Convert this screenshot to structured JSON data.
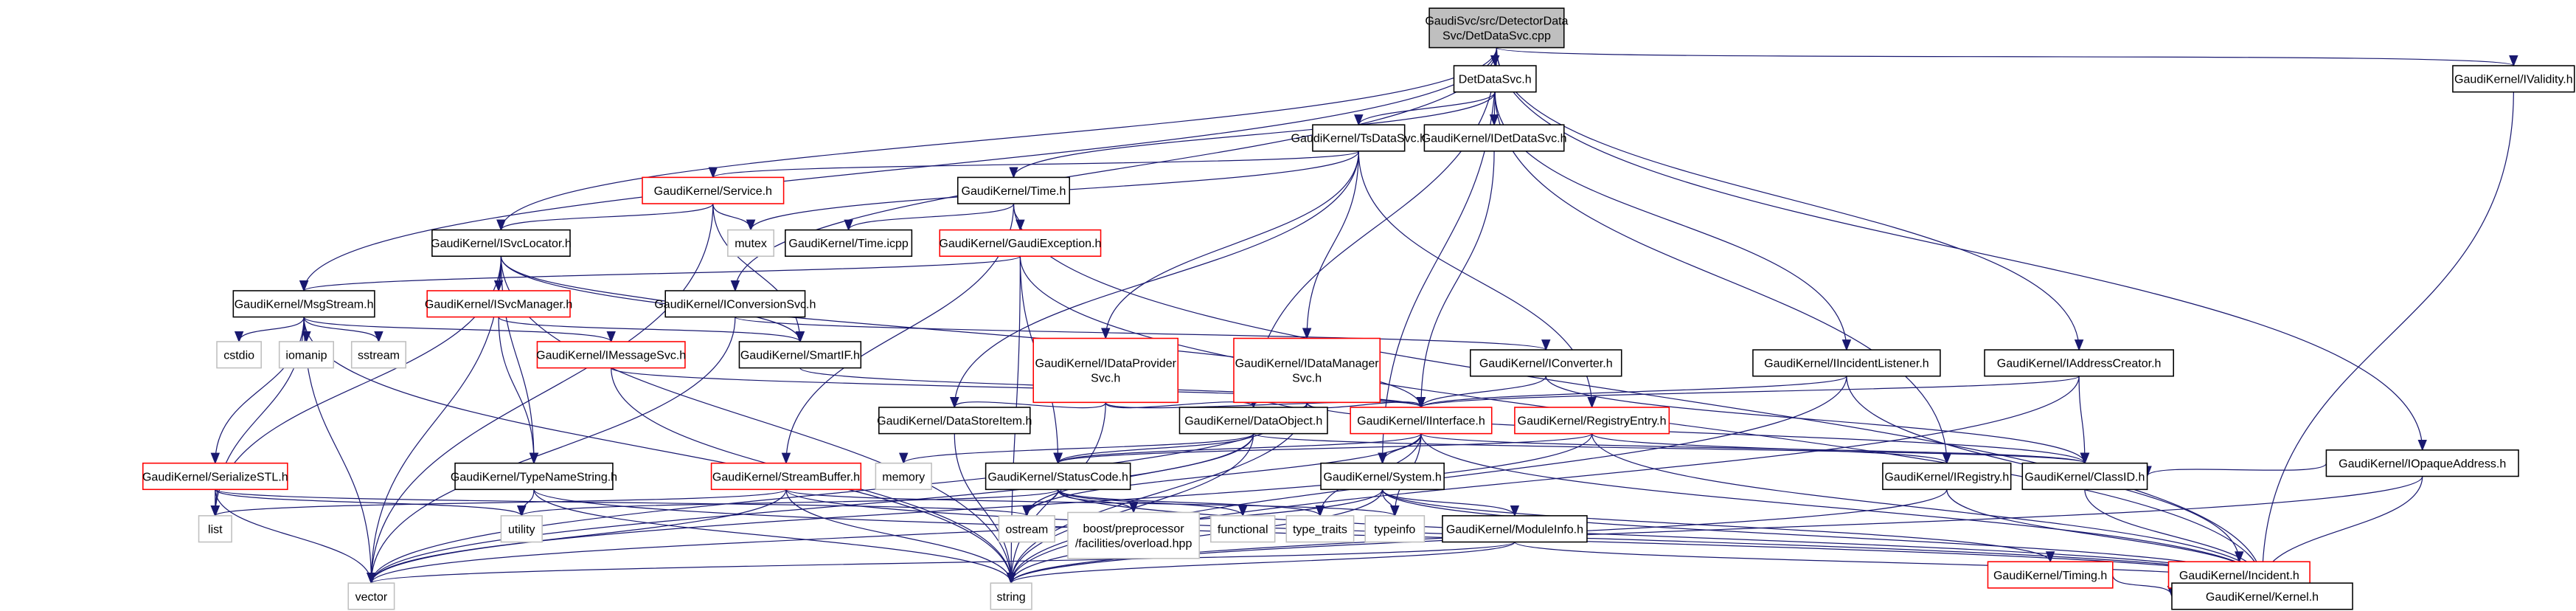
{
  "diagram": {
    "colors": {
      "edge": "#191970",
      "root_fill": "#bfbfbf",
      "normal_border": "#000000",
      "truncated_border": "#ff0000",
      "system_border": "#bfbfbf"
    },
    "nodes": [
      {
        "name": "GaudiSvc/src/DetectorDataSvc/DetDataSvc.cpp",
        "lines": [
          "GaudiSvc/src/DetectorData",
          "Svc/DetDataSvc.cpp"
        ],
        "kind": "root"
      },
      {
        "name": "DetDataSvc.h",
        "lines": [
          "DetDataSvc.h"
        ],
        "kind": "normal"
      },
      {
        "name": "GaudiKernel/TsDataSvc.h",
        "lines": [
          "GaudiKernel/TsDataSvc.h"
        ],
        "kind": "normal"
      },
      {
        "name": "GaudiKernel/IDetDataSvc.h",
        "lines": [
          "GaudiKernel/IDetDataSvc.h"
        ],
        "kind": "normal"
      },
      {
        "name": "GaudiKernel/IValidity.h",
        "lines": [
          "GaudiKernel/IValidity.h"
        ],
        "kind": "normal"
      },
      {
        "name": "GaudiKernel/Service.h",
        "lines": [
          "GaudiKernel/Service.h"
        ],
        "kind": "truncated"
      },
      {
        "name": "GaudiKernel/Time.h",
        "lines": [
          "GaudiKernel/Time.h"
        ],
        "kind": "normal"
      },
      {
        "name": "mutex",
        "lines": [
          "mutex"
        ],
        "kind": "system"
      },
      {
        "name": "GaudiKernel/Time.icpp",
        "lines": [
          "GaudiKernel/Time.icpp"
        ],
        "kind": "normal"
      },
      {
        "name": "GaudiKernel/GaudiException.h",
        "lines": [
          "GaudiKernel/GaudiException.h"
        ],
        "kind": "truncated"
      },
      {
        "name": "GaudiKernel/ISvcLocator.h",
        "lines": [
          "GaudiKernel/ISvcLocator.h"
        ],
        "kind": "normal"
      },
      {
        "name": "GaudiKernel/MsgStream.h",
        "lines": [
          "GaudiKernel/MsgStream.h"
        ],
        "kind": "normal"
      },
      {
        "name": "GaudiKernel/ISvcManager.h",
        "lines": [
          "GaudiKernel/ISvcManager.h"
        ],
        "kind": "truncated"
      },
      {
        "name": "GaudiKernel/IConversionSvc.h",
        "lines": [
          "GaudiKernel/IConversionSvc.h"
        ],
        "kind": "normal"
      },
      {
        "name": "cstdio",
        "lines": [
          "cstdio"
        ],
        "kind": "system"
      },
      {
        "name": "iomanip",
        "lines": [
          "iomanip"
        ],
        "kind": "system"
      },
      {
        "name": "sstream",
        "lines": [
          "sstream"
        ],
        "kind": "system"
      },
      {
        "name": "GaudiKernel/IMessageSvc.h",
        "lines": [
          "GaudiKernel/IMessageSvc.h"
        ],
        "kind": "truncated"
      },
      {
        "name": "GaudiKernel/SmartIF.h",
        "lines": [
          "GaudiKernel/SmartIF.h"
        ],
        "kind": "normal"
      },
      {
        "name": "GaudiKernel/IDataProviderSvc.h",
        "lines": [
          "GaudiKernel/IDataProvider",
          "Svc.h"
        ],
        "kind": "truncated"
      },
      {
        "name": "GaudiKernel/IDataManagerSvc.h",
        "lines": [
          "GaudiKernel/IDataManager",
          "Svc.h"
        ],
        "kind": "truncated"
      },
      {
        "name": "GaudiKernel/IConverter.h",
        "lines": [
          "GaudiKernel/IConverter.h"
        ],
        "kind": "normal"
      },
      {
        "name": "GaudiKernel/IIncidentListener.h",
        "lines": [
          "GaudiKernel/IIncidentListener.h"
        ],
        "kind": "normal"
      },
      {
        "name": "GaudiKernel/IAddressCreator.h",
        "lines": [
          "GaudiKernel/IAddressCreator.h"
        ],
        "kind": "normal"
      },
      {
        "name": "GaudiKernel/IOpaqueAddress.h",
        "lines": [
          "GaudiKernel/IOpaqueAddress.h"
        ],
        "kind": "normal"
      },
      {
        "name": "GaudiKernel/DataStoreItem.h",
        "lines": [
          "GaudiKernel/DataStoreItem.h"
        ],
        "kind": "normal"
      },
      {
        "name": "GaudiKernel/DataObject.h",
        "lines": [
          "GaudiKernel/DataObject.h"
        ],
        "kind": "normal"
      },
      {
        "name": "GaudiKernel/IInterface.h",
        "lines": [
          "GaudiKernel/IInterface.h"
        ],
        "kind": "truncated"
      },
      {
        "name": "GaudiKernel/RegistryEntry.h",
        "lines": [
          "GaudiKernel/RegistryEntry.h"
        ],
        "kind": "truncated"
      },
      {
        "name": "GaudiKernel/IRegistry.h",
        "lines": [
          "GaudiKernel/IRegistry.h"
        ],
        "kind": "normal"
      },
      {
        "name": "GaudiKernel/ClassID.h",
        "lines": [
          "GaudiKernel/ClassID.h"
        ],
        "kind": "normal"
      },
      {
        "name": "GaudiKernel/SerializeSTL.h",
        "lines": [
          "GaudiKernel/SerializeSTL.h"
        ],
        "kind": "truncated"
      },
      {
        "name": "GaudiKernel/TypeNameString.h",
        "lines": [
          "GaudiKernel/TypeNameString.h"
        ],
        "kind": "normal"
      },
      {
        "name": "GaudiKernel/StreamBuffer.h",
        "lines": [
          "GaudiKernel/StreamBuffer.h"
        ],
        "kind": "truncated"
      },
      {
        "name": "memory",
        "lines": [
          "memory"
        ],
        "kind": "system"
      },
      {
        "name": "GaudiKernel/StatusCode.h",
        "lines": [
          "GaudiKernel/StatusCode.h"
        ],
        "kind": "normal"
      },
      {
        "name": "GaudiKernel/System.h",
        "lines": [
          "GaudiKernel/System.h"
        ],
        "kind": "normal"
      },
      {
        "name": "list",
        "lines": [
          "list"
        ],
        "kind": "system"
      },
      {
        "name": "utility",
        "lines": [
          "utility"
        ],
        "kind": "system"
      },
      {
        "name": "vector",
        "lines": [
          "vector"
        ],
        "kind": "system"
      },
      {
        "name": "ostream",
        "lines": [
          "ostream"
        ],
        "kind": "system"
      },
      {
        "name": "boost/preprocessor/facilities/overload.hpp",
        "lines": [
          "boost/preprocessor",
          "/facilities/overload.hpp"
        ],
        "kind": "system"
      },
      {
        "name": "functional",
        "lines": [
          "functional"
        ],
        "kind": "system"
      },
      {
        "name": "type_traits",
        "lines": [
          "type_traits"
        ],
        "kind": "system"
      },
      {
        "name": "typeinfo",
        "lines": [
          "typeinfo"
        ],
        "kind": "system"
      },
      {
        "name": "GaudiKernel/ModuleInfo.h",
        "lines": [
          "GaudiKernel/ModuleInfo.h"
        ],
        "kind": "normal"
      },
      {
        "name": "GaudiKernel/Timing.h",
        "lines": [
          "GaudiKernel/Timing.h"
        ],
        "kind": "truncated"
      },
      {
        "name": "GaudiKernel/Incident.h",
        "lines": [
          "GaudiKernel/Incident.h"
        ],
        "kind": "truncated"
      },
      {
        "name": "string",
        "lines": [
          "string"
        ],
        "kind": "system"
      },
      {
        "name": "GaudiKernel/Kernel.h",
        "lines": [
          "GaudiKernel/Kernel.h"
        ],
        "kind": "normal"
      }
    ],
    "edges": [
      [
        "GaudiSvc/src/DetectorDataSvc/DetDataSvc.cpp",
        "DetDataSvc.h"
      ],
      [
        "GaudiSvc/src/DetectorDataSvc/DetDataSvc.cpp",
        "GaudiKernel/IValidity.h"
      ],
      [
        "GaudiSvc/src/DetectorDataSvc/DetDataSvc.cpp",
        "GaudiKernel/MsgStream.h"
      ],
      [
        "GaudiSvc/src/DetectorDataSvc/DetDataSvc.cpp",
        "GaudiKernel/ISvcLocator.h"
      ],
      [
        "GaudiSvc/src/DetectorDataSvc/DetDataSvc.cpp",
        "GaudiKernel/IConversionSvc.h"
      ],
      [
        "GaudiSvc/src/DetectorDataSvc/DetDataSvc.cpp",
        "GaudiKernel/DataObject.h"
      ],
      [
        "GaudiSvc/src/DetectorDataSvc/DetDataSvc.cpp",
        "GaudiKernel/System.h"
      ],
      [
        "GaudiSvc/src/DetectorDataSvc/DetDataSvc.cpp",
        "GaudiKernel/IAddressCreator.h"
      ],
      [
        "GaudiSvc/src/DetectorDataSvc/DetDataSvc.cpp",
        "GaudiKernel/IOpaqueAddress.h"
      ],
      [
        "DetDataSvc.h",
        "GaudiKernel/TsDataSvc.h"
      ],
      [
        "DetDataSvc.h",
        "GaudiKernel/IDetDataSvc.h"
      ],
      [
        "DetDataSvc.h",
        "GaudiKernel/Time.h"
      ],
      [
        "DetDataSvc.h",
        "GaudiKernel/IIncidentListener.h"
      ],
      [
        "DetDataSvc.h",
        "GaudiKernel/IRegistry.h"
      ],
      [
        "GaudiKernel/TsDataSvc.h",
        "GaudiKernel/Service.h"
      ],
      [
        "GaudiKernel/TsDataSvc.h",
        "mutex"
      ],
      [
        "GaudiKernel/TsDataSvc.h",
        "GaudiKernel/DataStoreItem.h"
      ],
      [
        "GaudiKernel/TsDataSvc.h",
        "GaudiKernel/IDataProviderSvc.h"
      ],
      [
        "GaudiKernel/TsDataSvc.h",
        "GaudiKernel/IDataManagerSvc.h"
      ],
      [
        "GaudiKernel/TsDataSvc.h",
        "GaudiKernel/RegistryEntry.h"
      ],
      [
        "GaudiKernel/IDetDataSvc.h",
        "GaudiKernel/IInterface.h"
      ],
      [
        "GaudiKernel/IValidity.h",
        "GaudiKernel/Kernel.h"
      ],
      [
        "GaudiKernel/Service.h",
        "GaudiKernel/ISvcLocator.h"
      ],
      [
        "GaudiKernel/Service.h",
        "mutex"
      ],
      [
        "GaudiKernel/Service.h",
        "vector"
      ],
      [
        "GaudiKernel/Service.h",
        "GaudiKernel/SmartIF.h"
      ],
      [
        "GaudiKernel/Time.h",
        "GaudiKernel/Time.icpp"
      ],
      [
        "GaudiKernel/Time.h",
        "GaudiKernel/GaudiException.h"
      ],
      [
        "GaudiKernel/Time.h",
        "GaudiKernel/StreamBuffer.h"
      ],
      [
        "GaudiKernel/Time.h",
        "GaudiKernel/Kernel.h"
      ],
      [
        "GaudiKernel/GaudiException.h",
        "GaudiKernel/MsgStream.h"
      ],
      [
        "GaudiKernel/GaudiException.h",
        "string"
      ],
      [
        "GaudiKernel/GaudiException.h",
        "GaudiKernel/StatusCode.h"
      ],
      [
        "GaudiKernel/GaudiException.h",
        "GaudiKernel/Kernel.h"
      ],
      [
        "GaudiKernel/ISvcLocator.h",
        "GaudiKernel/ISvcManager.h"
      ],
      [
        "GaudiKernel/ISvcLocator.h",
        "GaudiKernel/SmartIF.h"
      ],
      [
        "GaudiKernel/ISvcLocator.h",
        "GaudiKernel/TypeNameString.h"
      ],
      [
        "GaudiKernel/ISvcLocator.h",
        "GaudiKernel/IInterface.h"
      ],
      [
        "GaudiKernel/ISvcLocator.h",
        "list"
      ],
      [
        "GaudiKernel/ISvcLocator.h",
        "string"
      ],
      [
        "GaudiKernel/ISvcLocator.h",
        "vector"
      ],
      [
        "GaudiKernel/MsgStream.h",
        "cstdio"
      ],
      [
        "GaudiKernel/MsgStream.h",
        "iomanip"
      ],
      [
        "GaudiKernel/MsgStream.h",
        "sstream"
      ],
      [
        "GaudiKernel/MsgStream.h",
        "GaudiKernel/IMessageSvc.h"
      ],
      [
        "GaudiKernel/MsgStream.h",
        "GaudiKernel/SerializeSTL.h"
      ],
      [
        "GaudiKernel/MsgStream.h",
        "string"
      ],
      [
        "GaudiKernel/MsgStream.h",
        "vector"
      ],
      [
        "GaudiKernel/MsgStream.h",
        "list"
      ],
      [
        "GaudiKernel/ISvcManager.h",
        "GaudiKernel/TypeNameString.h"
      ],
      [
        "GaudiKernel/ISvcManager.h",
        "GaudiKernel/SmartIF.h"
      ],
      [
        "GaudiKernel/IConversionSvc.h",
        "GaudiKernel/IConverter.h"
      ],
      [
        "GaudiKernel/IConversionSvc.h",
        "vector"
      ],
      [
        "GaudiKernel/IMessageSvc.h",
        "GaudiKernel/IInterface.h"
      ],
      [
        "GaudiKernel/IMessageSvc.h",
        "string"
      ],
      [
        "GaudiKernel/SmartIF.h",
        "GaudiKernel/IInterface.h"
      ],
      [
        "GaudiKernel/IDataProviderSvc.h",
        "GaudiKernel/DataStoreItem.h"
      ],
      [
        "GaudiKernel/IDataProviderSvc.h",
        "GaudiKernel/DataObject.h"
      ],
      [
        "GaudiKernel/IDataProviderSvc.h",
        "GaudiKernel/IInterface.h"
      ],
      [
        "GaudiKernel/IDataProviderSvc.h",
        "string"
      ],
      [
        "GaudiKernel/IDataManagerSvc.h",
        "GaudiKernel/DataObject.h"
      ],
      [
        "GaudiKernel/IDataManagerSvc.h",
        "GaudiKernel/IInterface.h"
      ],
      [
        "GaudiKernel/IDataManagerSvc.h",
        "string"
      ],
      [
        "GaudiKernel/IDataManagerSvc.h",
        "GaudiKernel/ClassID.h"
      ],
      [
        "GaudiKernel/IDataManagerSvc.h",
        "vector"
      ],
      [
        "GaudiKernel/IConverter.h",
        "GaudiKernel/IInterface.h"
      ],
      [
        "GaudiKernel/IConverter.h",
        "GaudiKernel/ClassID.h"
      ],
      [
        "GaudiKernel/IIncidentListener.h",
        "GaudiKernel/IInterface.h"
      ],
      [
        "GaudiKernel/IIncidentListener.h",
        "string"
      ],
      [
        "GaudiKernel/IIncidentListener.h",
        "GaudiKernel/Incident.h"
      ],
      [
        "GaudiKernel/IAddressCreator.h",
        "GaudiKernel/IInterface.h"
      ],
      [
        "GaudiKernel/IAddressCreator.h",
        "GaudiKernel/ClassID.h"
      ],
      [
        "GaudiKernel/IAddressCreator.h",
        "string"
      ],
      [
        "GaudiKernel/IOpaqueAddress.h",
        "GaudiKernel/ClassID.h"
      ],
      [
        "GaudiKernel/IOpaqueAddress.h",
        "GaudiKernel/Kernel.h"
      ],
      [
        "GaudiKernel/IOpaqueAddress.h",
        "string"
      ],
      [
        "GaudiKernel/DataStoreItem.h",
        "string"
      ],
      [
        "GaudiKernel/DataObject.h",
        "GaudiKernel/ClassID.h"
      ],
      [
        "GaudiKernel/DataObject.h",
        "GaudiKernel/StatusCode.h"
      ],
      [
        "GaudiKernel/DataObject.h",
        "memory"
      ],
      [
        "GaudiKernel/DataObject.h",
        "ostream"
      ],
      [
        "GaudiKernel/DataObject.h",
        "string"
      ],
      [
        "GaudiKernel/DataObject.h",
        "vector"
      ],
      [
        "GaudiKernel/IInterface.h",
        "GaudiKernel/StatusCode.h"
      ],
      [
        "GaudiKernel/IInterface.h",
        "GaudiKernel/System.h"
      ],
      [
        "GaudiKernel/IInterface.h",
        "typeinfo"
      ],
      [
        "GaudiKernel/IInterface.h",
        "type_traits"
      ],
      [
        "GaudiKernel/IInterface.h",
        "ostream"
      ],
      [
        "GaudiKernel/IInterface.h",
        "GaudiKernel/Kernel.h"
      ],
      [
        "GaudiKernel/IInterface.h",
        "GaudiKernel/ClassID.h"
      ],
      [
        "GaudiKernel/RegistryEntry.h",
        "GaudiKernel/IRegistry.h"
      ],
      [
        "GaudiKernel/RegistryEntry.h",
        "GaudiKernel/StatusCode.h"
      ],
      [
        "GaudiKernel/RegistryEntry.h",
        "GaudiKernel/Kernel.h"
      ],
      [
        "GaudiKernel/RegistryEntry.h",
        "vector"
      ],
      [
        "GaudiKernel/IRegistry.h",
        "GaudiKernel/Kernel.h"
      ],
      [
        "GaudiKernel/IRegistry.h",
        "string"
      ],
      [
        "GaudiKernel/ClassID.h",
        "GaudiKernel/Kernel.h"
      ],
      [
        "GaudiKernel/SerializeSTL.h",
        "list"
      ],
      [
        "GaudiKernel/SerializeSTL.h",
        "utility"
      ],
      [
        "GaudiKernel/SerializeSTL.h",
        "vector"
      ],
      [
        "GaudiKernel/SerializeSTL.h",
        "ostream"
      ],
      [
        "GaudiKernel/TypeNameString.h",
        "utility"
      ],
      [
        "GaudiKernel/TypeNameString.h",
        "string"
      ],
      [
        "GaudiKernel/TypeNameString.h",
        "GaudiKernel/Kernel.h"
      ],
      [
        "GaudiKernel/StreamBuffer.h",
        "list"
      ],
      [
        "GaudiKernel/StreamBuffer.h",
        "vector"
      ],
      [
        "GaudiKernel/StreamBuffer.h",
        "string"
      ],
      [
        "GaudiKernel/StreamBuffer.h",
        "GaudiKernel/Kernel.h"
      ],
      [
        "GaudiKernel/StreamBuffer.h",
        "typeinfo"
      ],
      [
        "GaudiKernel/StatusCode.h",
        "ostream"
      ],
      [
        "GaudiKernel/StatusCode.h",
        "boost/preprocessor/facilities/overload.hpp"
      ],
      [
        "GaudiKernel/StatusCode.h",
        "functional"
      ],
      [
        "GaudiKernel/StatusCode.h",
        "type_traits"
      ],
      [
        "GaudiKernel/StatusCode.h",
        "utility"
      ],
      [
        "GaudiKernel/StatusCode.h",
        "GaudiKernel/Kernel.h"
      ],
      [
        "GaudiKernel/System.h",
        "GaudiKernel/ModuleInfo.h"
      ],
      [
        "GaudiKernel/System.h",
        "typeinfo"
      ],
      [
        "GaudiKernel/System.h",
        "string"
      ],
      [
        "GaudiKernel/System.h",
        "vector"
      ],
      [
        "GaudiKernel/System.h",
        "GaudiKernel/Timing.h"
      ],
      [
        "GaudiKernel/System.h",
        "GaudiKernel/Kernel.h"
      ],
      [
        "GaudiKernel/ModuleInfo.h",
        "GaudiKernel/Kernel.h"
      ],
      [
        "GaudiKernel/ModuleInfo.h",
        "string"
      ],
      [
        "GaudiKernel/ModuleInfo.h",
        "vector"
      ],
      [
        "GaudiKernel/Timing.h",
        "GaudiKernel/Kernel.h"
      ],
      [
        "GaudiKernel/Incident.h",
        "GaudiKernel/Kernel.h"
      ]
    ]
  }
}
